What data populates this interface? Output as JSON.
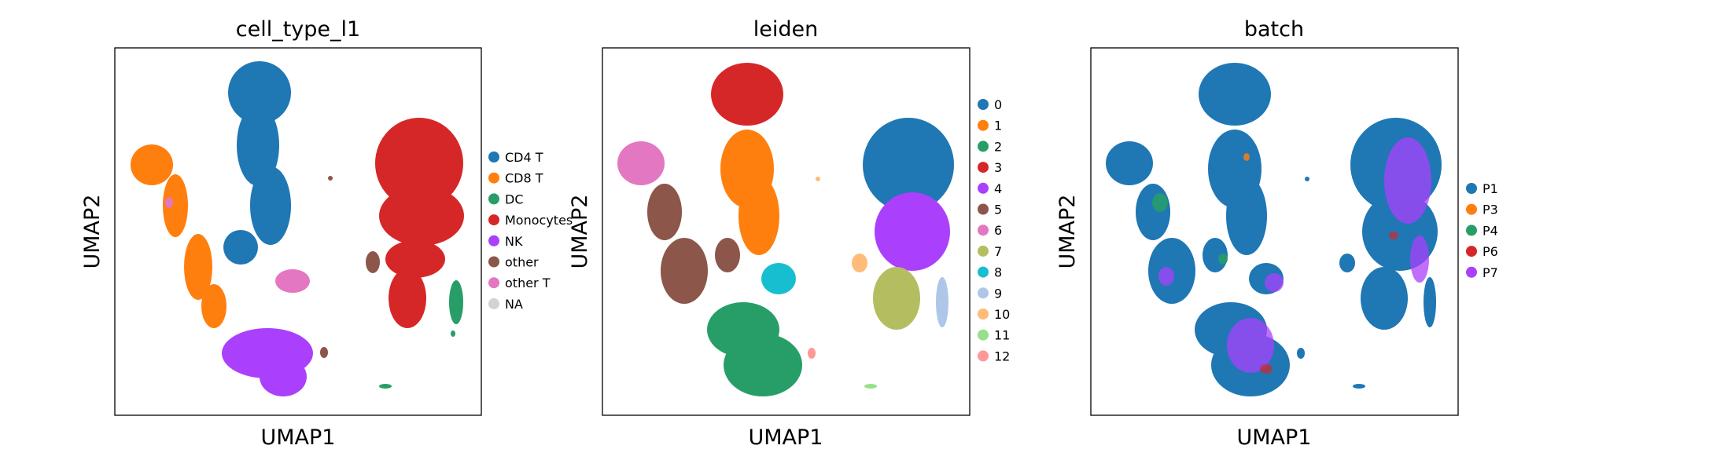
{
  "chart_data": [
    {
      "type": "scatter",
      "title": "cell_type_l1",
      "xlabel": "UMAP1",
      "ylabel": "UMAP2",
      "grid": false,
      "legend_placement": "right",
      "legend": [
        {
          "name": "CD4 T",
          "color": "#1f77b4"
        },
        {
          "name": "CD8 T",
          "color": "#ff7f0e"
        },
        {
          "name": "DC",
          "color": "#279e68"
        },
        {
          "name": "Monocytes",
          "color": "#d62728"
        },
        {
          "name": "NK",
          "color": "#aa40fc"
        },
        {
          "name": "other",
          "color": "#8c564b"
        },
        {
          "name": "other T",
          "color": "#e377c2"
        },
        {
          "name": "NA",
          "color": "#d3d3d3"
        }
      ]
    },
    {
      "type": "scatter",
      "title": "leiden",
      "xlabel": "UMAP1",
      "ylabel": "UMAP2",
      "grid": false,
      "legend_placement": "right",
      "legend": [
        {
          "name": "0",
          "color": "#1f77b4"
        },
        {
          "name": "1",
          "color": "#ff7f0e"
        },
        {
          "name": "2",
          "color": "#279e68"
        },
        {
          "name": "3",
          "color": "#d62728"
        },
        {
          "name": "4",
          "color": "#aa40fc"
        },
        {
          "name": "5",
          "color": "#8c564b"
        },
        {
          "name": "6",
          "color": "#e377c2"
        },
        {
          "name": "7",
          "color": "#b5bd61"
        },
        {
          "name": "8",
          "color": "#17becf"
        },
        {
          "name": "9",
          "color": "#aec7e8"
        },
        {
          "name": "10",
          "color": "#ffbb78"
        },
        {
          "name": "11",
          "color": "#98df8a"
        },
        {
          "name": "12",
          "color": "#ff9896"
        }
      ]
    },
    {
      "type": "scatter",
      "title": "batch",
      "xlabel": "UMAP1",
      "ylabel": "UMAP2",
      "grid": false,
      "legend_placement": "right",
      "legend": [
        {
          "name": "P1",
          "color": "#1f77b4"
        },
        {
          "name": "P3",
          "color": "#ff7f0e"
        },
        {
          "name": "P4",
          "color": "#279e68"
        },
        {
          "name": "P6",
          "color": "#d62728"
        },
        {
          "name": "P7",
          "color": "#aa40fc"
        }
      ]
    }
  ]
}
